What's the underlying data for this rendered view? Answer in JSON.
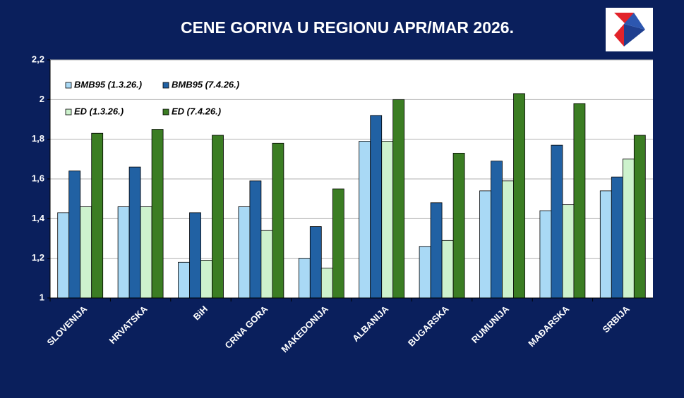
{
  "chart_data": {
    "type": "bar",
    "title": "CENE GORIVA U REGIONU APR/MAR 2026.",
    "categories": [
      "SLOVENIJA",
      "HRVATSKA",
      "BiH",
      "CRNA GORA",
      "MAKEDONIJA",
      "ALBANIJA",
      "BUGARSKA",
      "RUMUNIJA",
      "MAĐARSKA",
      "SRBIJA"
    ],
    "series": [
      {
        "name": "BMB95 (1.3.26.)",
        "color": "#a9d9f5",
        "values": [
          1.43,
          1.46,
          1.18,
          1.46,
          1.2,
          1.79,
          1.26,
          1.54,
          1.44,
          1.54
        ]
      },
      {
        "name": "BMB95 (7.4.26.)",
        "color": "#2161a3",
        "values": [
          1.64,
          1.66,
          1.43,
          1.59,
          1.36,
          1.92,
          1.48,
          1.69,
          1.77,
          1.61
        ]
      },
      {
        "name": "ED (1.3.26.)",
        "color": "#cdf2cd",
        "values": [
          1.46,
          1.46,
          1.19,
          1.34,
          1.15,
          1.79,
          1.29,
          1.59,
          1.47,
          1.7
        ]
      },
      {
        "name": "ED (7.4.26.)",
        "color": "#3b7d23",
        "values": [
          1.83,
          1.85,
          1.82,
          1.78,
          1.55,
          2.0,
          1.73,
          2.03,
          1.98,
          1.82
        ]
      }
    ],
    "ylim": [
      1,
      2.2
    ],
    "yticks": [
      1,
      {
        "value": 1.2,
        "label": "1,2"
      },
      {
        "value": 1.4,
        "label": "1,4"
      },
      {
        "value": 1.6,
        "label": "1,6"
      },
      {
        "value": 1.8,
        "label": "1,8"
      },
      2,
      {
        "value": 2.2,
        "label": "2,2"
      }
    ],
    "grid": true,
    "legend": "upper left"
  }
}
